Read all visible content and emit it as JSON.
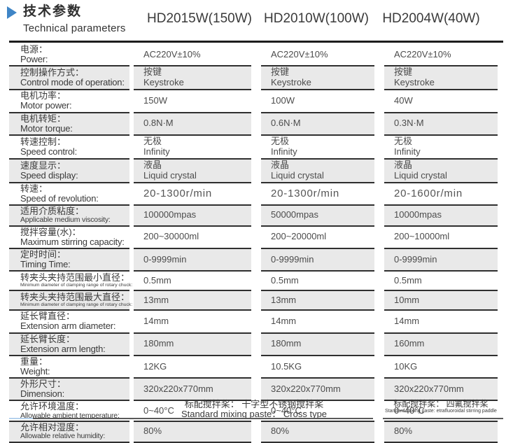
{
  "header": {
    "title_zh": "技术参数",
    "title_en": "Technical parameters",
    "columns": [
      "HD2015W(150W)",
      "HD2010W(100W)",
      "HD2004W(40W)"
    ]
  },
  "rows": [
    {
      "zh": "电源：",
      "en": "Power:",
      "c": [
        [
          "AC220V±10%"
        ],
        [
          "AC220V±10%"
        ],
        [
          "AC220V±10%"
        ]
      ]
    },
    {
      "zh": "控制操作方式：",
      "en": "Control mode of operation:",
      "c": [
        [
          "按键",
          "Keystroke"
        ],
        [
          "按键",
          "Keystroke"
        ],
        [
          "按键",
          "Keystroke"
        ]
      ]
    },
    {
      "zh": "电机功率：",
      "en": "Motor power:",
      "c": [
        [
          "150W"
        ],
        [
          "100W"
        ],
        [
          "40W"
        ]
      ]
    },
    {
      "zh": "电机转矩：",
      "en": "Motor torque:",
      "c": [
        [
          "0.8N·M"
        ],
        [
          "0.6N·M"
        ],
        [
          "0.3N·M"
        ]
      ]
    },
    {
      "zh": "转速控制：",
      "en": "Speed control:",
      "c": [
        [
          "无极",
          "Infinity"
        ],
        [
          "无极",
          "Infinity"
        ],
        [
          "无极",
          "Infinity"
        ]
      ]
    },
    {
      "zh": "速度显示：",
      "en": "Speed display:",
      "c": [
        [
          "液晶",
          "Liquid crystal"
        ],
        [
          "液晶",
          "Liquid crystal"
        ],
        [
          "液晶",
          "Liquid crystal"
        ]
      ]
    },
    {
      "zh": "转速：",
      "en": "Speed of revolution:",
      "c": [
        [
          "20-1300r/min"
        ],
        [
          "20-1300r/min"
        ],
        [
          "20-1600r/min"
        ]
      ]
    },
    {
      "zh": "适用介质粘度：",
      "en": "Applicable medium viscosity:",
      "c": [
        [
          "100000mpas"
        ],
        [
          "50000mpas"
        ],
        [
          "10000mpas"
        ]
      ]
    },
    {
      "zh": "搅拌容量(水)：",
      "en": "Maximum stirring capacity:",
      "c": [
        [
          "200~30000ml"
        ],
        [
          "200~20000ml"
        ],
        [
          "200~10000ml"
        ]
      ]
    },
    {
      "zh": "定时时间：",
      "en": "Timing Time:",
      "c": [
        [
          "0-9999min"
        ],
        [
          "0-9999min"
        ],
        [
          "0-9999min"
        ]
      ]
    },
    {
      "zh": "转夹头夹持范围最小直径：",
      "en": "Minimum diameter of clamping range of rotary chuck:",
      "c": [
        [
          "0.5mm"
        ],
        [
          "0.5mm"
        ],
        [
          "0.5mm"
        ]
      ]
    },
    {
      "zh": "转夹头夹持范围最大直径：",
      "en": "Minimum diameter of clamping range of rotary chuck:",
      "c": [
        [
          "13mm"
        ],
        [
          "13mm"
        ],
        [
          "10mm"
        ]
      ]
    },
    {
      "zh": "延长臂直径：",
      "en": "Extension arm diameter:",
      "c": [
        [
          "14mm"
        ],
        [
          "14mm"
        ],
        [
          "14mm"
        ]
      ]
    },
    {
      "zh": "延长臂长度：",
      "en": "Extension arm length:",
      "c": [
        [
          "180mm"
        ],
        [
          "180mm"
        ],
        [
          "160mm"
        ]
      ]
    },
    {
      "zh": "重量：",
      "en": "Weight:",
      "c": [
        [
          "12KG"
        ],
        [
          "10.5KG"
        ],
        [
          "10KG"
        ]
      ]
    },
    {
      "zh": "外形尺寸：",
      "en": "Dimension:",
      "c": [
        [
          "320x220x770mm"
        ],
        [
          "320x220x770mm"
        ],
        [
          "320x220x770mm"
        ]
      ]
    },
    {
      "zh": "允许环境温度：",
      "en": "Allowable ambient temperature:",
      "c": [
        [
          "0~40°C"
        ],
        [
          "0~40°C"
        ],
        [
          "0~40°C"
        ]
      ]
    },
    {
      "zh": "允许相对湿度：",
      "en": "Allowable relative humidity:",
      "c": [
        [
          "80%"
        ],
        [
          "80%"
        ],
        [
          "80%"
        ]
      ]
    }
  ],
  "footer": {
    "left": {
      "zh": "标配搅拌桨： 十字型不锈钢搅拌桨",
      "en": "Standard mixing paste： Cross type"
    },
    "right": {
      "zh": "标配搅拌桨： 四氟搅拌桨",
      "en": "Standard mixing paste:  etrafluoroidal stirring paddle"
    }
  },
  "colors": {
    "accent_blue": "#3f85c6",
    "line_dark": "#1d1d1d",
    "row_shade": "#e9e9e9",
    "footer_blue_segment": "#b5d1ed"
  }
}
